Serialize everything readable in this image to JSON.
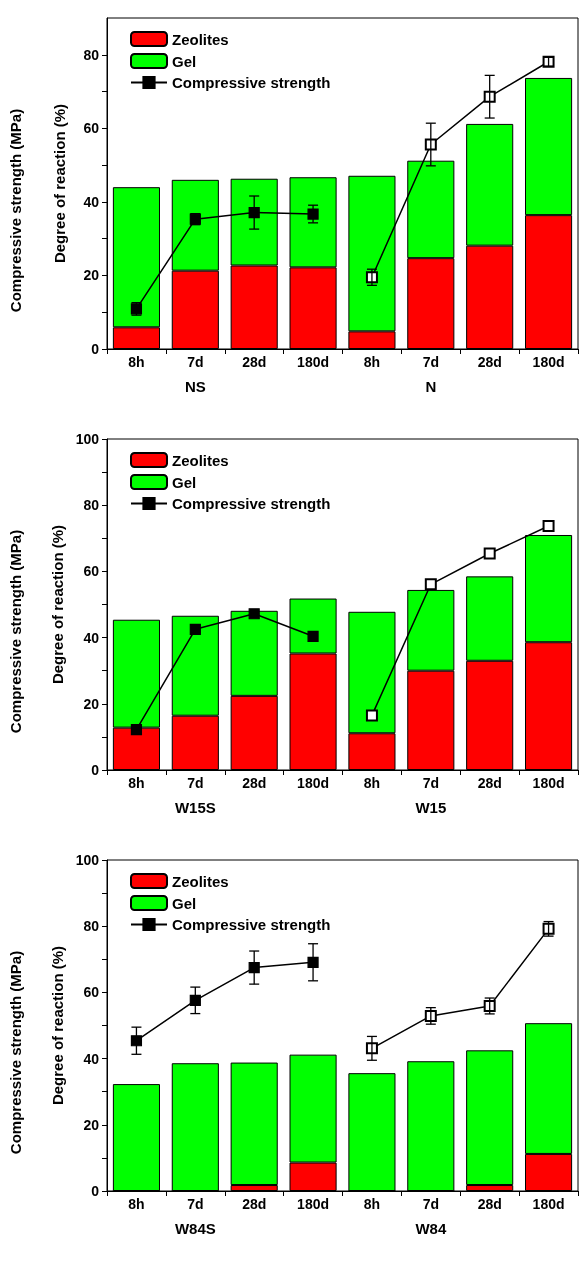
{
  "chart_data": [
    {
      "type": "bar",
      "stacked": true,
      "ylabel": "Degree of reaction (%)",
      "annotations": [
        "Compressive strength (MPa)",
        "NS",
        "N"
      ],
      "categories": [
        "8h",
        "7d",
        "28d",
        "180d",
        "8h",
        "7d",
        "28d",
        "180d"
      ],
      "ylim": [
        0,
        90
      ],
      "yticks": [
        0,
        {
          "value": 10,
          "label": null
        },
        20,
        {
          "value": 30,
          "label": null
        },
        40,
        {
          "value": 50,
          "label": null
        },
        60,
        {
          "value": 70,
          "label": null
        },
        80
      ],
      "legend": "top left",
      "marker": "square",
      "series": [
        {
          "name": "Zeolites",
          "color": "#ff0000",
          "values": [
            5.9,
            21.3,
            22.7,
            22.2,
            4.8,
            24.7,
            28.1,
            36.4
          ]
        },
        {
          "name": "Gel",
          "color": "#00ff00",
          "values": [
            38.1,
            24.7,
            23.6,
            24.5,
            42.3,
            26.5,
            33.1,
            37.3
          ]
        },
        {
          "name": "Compressive strength",
          "type": "line",
          "color": "#000000",
          "values": [
            10.9,
            35.3,
            37.1,
            36.7,
            null,
            null,
            null,
            null
          ],
          "errors": [
            1.7,
            1.5,
            4.5,
            2.4,
            null,
            null,
            null,
            null
          ]
        },
        {
          "type": "line",
          "color": "#000000",
          "values": [
            null,
            null,
            null,
            null,
            19.5,
            55.6,
            68.6,
            78.1
          ],
          "errors": [
            null,
            null,
            null,
            null,
            2.2,
            5.8,
            5.8,
            1.2
          ]
        }
      ]
    },
    {
      "type": "bar",
      "stacked": true,
      "ylabel": "Degree of reaction (%)",
      "annotations": [
        "Compressive strength (MPa)",
        "W15S",
        "W15"
      ],
      "categories": [
        "8h",
        "7d",
        "28d",
        "180d",
        "8h",
        "7d",
        "28d",
        "180d"
      ],
      "ylim": [
        0,
        100
      ],
      "yticks": [
        0,
        {
          "value": 10,
          "label": null
        },
        20,
        {
          "value": 30,
          "label": null
        },
        40,
        {
          "value": 50,
          "label": null
        },
        60,
        {
          "value": 70,
          "label": null
        },
        80,
        {
          "value": 90,
          "label": null
        },
        100
      ],
      "legend": "top left",
      "marker": "square",
      "series": [
        {
          "name": "Zeolites",
          "color": "#ff0000",
          "values": [
            12.8,
            16.4,
            22.4,
            35.2,
            11.1,
            30.0,
            33.0,
            38.6
          ]
        },
        {
          "name": "Gel",
          "color": "#00ff00",
          "values": [
            32.6,
            30.2,
            25.7,
            16.6,
            36.7,
            24.4,
            25.5,
            32.4
          ]
        },
        {
          "name": "Compressive strength",
          "type": "line",
          "color": "#000000",
          "values": [
            12.2,
            42.5,
            47.2,
            40.4,
            null,
            null,
            null,
            null
          ]
        },
        {
          "type": "line",
          "color": "#000000",
          "values": [
            null,
            null,
            null,
            null,
            16.5,
            56.1,
            65.4,
            73.7
          ]
        }
      ]
    },
    {
      "type": "bar",
      "stacked": true,
      "ylabel": "Degree of reaction (%)",
      "annotations": [
        "Compressive strength (MPa)",
        "W84S",
        "W84"
      ],
      "categories": [
        "8h",
        "7d",
        "28d",
        "180d",
        "8h",
        "7d",
        "28d",
        "180d"
      ],
      "ylim": [
        0,
        100
      ],
      "yticks": [
        0,
        {
          "value": 10,
          "label": null
        },
        20,
        {
          "value": 30,
          "label": null
        },
        40,
        {
          "value": 50,
          "label": null
        },
        60,
        {
          "value": 70,
          "label": null
        },
        80,
        {
          "value": 90,
          "label": null
        },
        100
      ],
      "legend": "top left",
      "marker": "square",
      "series": [
        {
          "name": "Zeolites",
          "color": "#ff0000",
          "values": [
            0,
            0,
            1.8,
            8.6,
            0,
            0,
            1.8,
            11.2
          ]
        },
        {
          "name": "Gel",
          "color": "#00ff00",
          "values": [
            32.3,
            38.6,
            37.0,
            32.6,
            35.6,
            39.2,
            40.7,
            39.5
          ]
        },
        {
          "name": "Compressive strength",
          "type": "line",
          "color": "#000000",
          "values": [
            45.4,
            57.6,
            67.5,
            69.1,
            null,
            null,
            null,
            null
          ],
          "errors": [
            4.1,
            4.0,
            5.0,
            5.6,
            null,
            null,
            null,
            null
          ]
        },
        {
          "type": "line",
          "color": "#000000",
          "values": [
            null,
            null,
            null,
            null,
            43.1,
            52.9,
            55.9,
            79.2
          ],
          "errors": [
            null,
            null,
            null,
            null,
            3.6,
            2.5,
            2.4,
            2.2
          ]
        }
      ]
    }
  ]
}
